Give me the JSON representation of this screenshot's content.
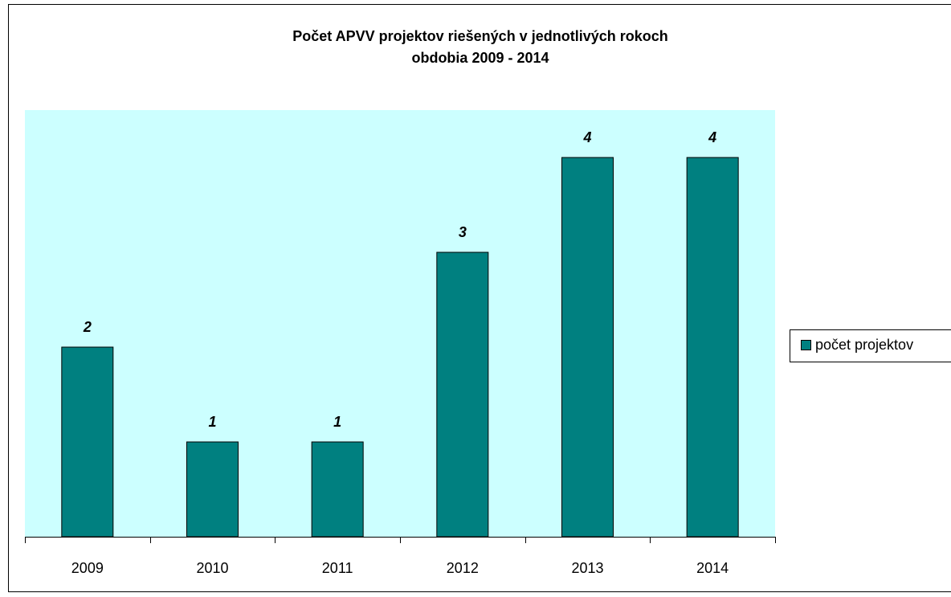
{
  "chart_data": {
    "type": "bar",
    "title": [
      "Počet APVV projektov riešených v jednotlivých rokoch",
      "obdobia  2009 - 2014"
    ],
    "categories": [
      "2009",
      "2010",
      "2011",
      "2012",
      "2013",
      "2014"
    ],
    "series": [
      {
        "name": "počet projektov",
        "color": "#008080",
        "values": [
          2,
          1,
          1,
          3,
          4,
          4
        ]
      }
    ],
    "ylim": [
      0,
      4.5
    ],
    "legend": "right"
  }
}
